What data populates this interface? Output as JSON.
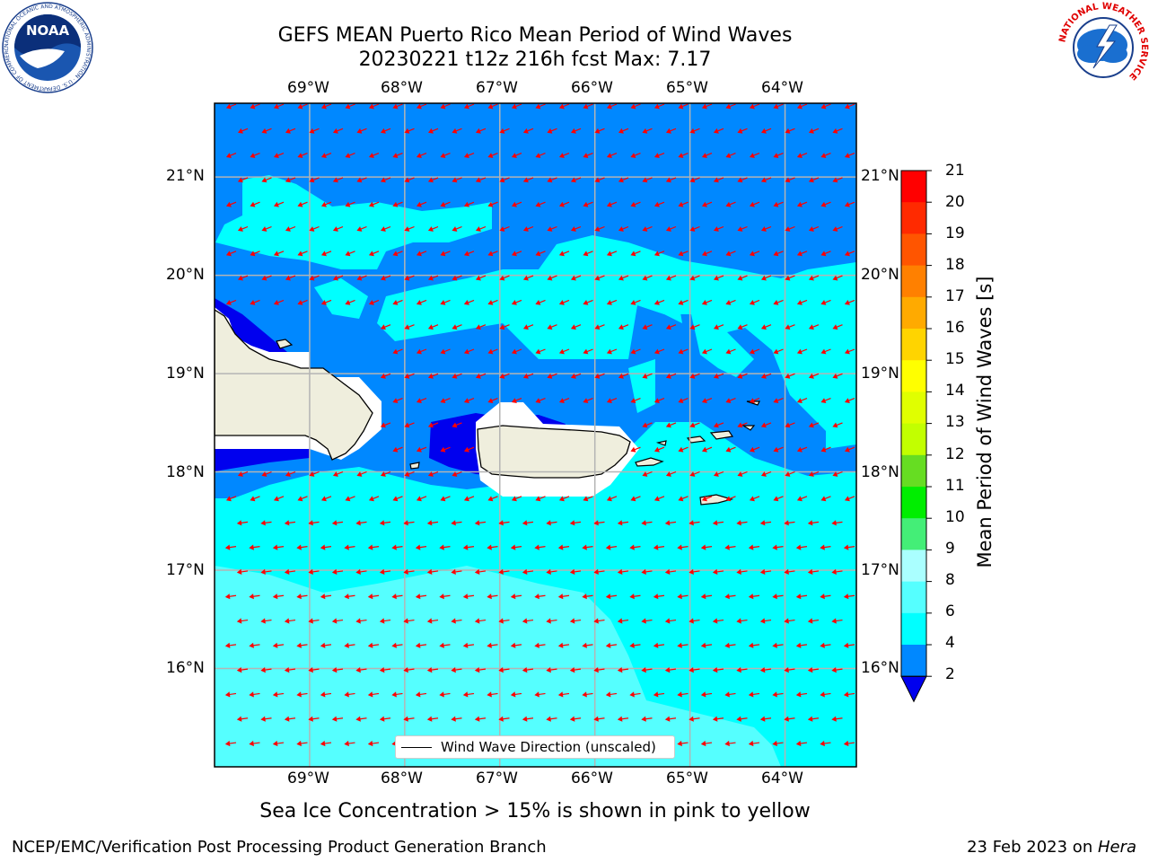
{
  "title": {
    "line1": "GEFS MEAN Puerto Rico Mean Period of Wind Waves",
    "line2": "20230221 t12z 216h fcst   Max: 7.17"
  },
  "logos": {
    "left": {
      "text": "NOAA",
      "ring_text": "NATIONAL OCEANIC AND ATMOSPHERIC ADMINISTRATION · U.S. DEPARTMENT OF COMMERCE"
    },
    "right": {
      "ring_text": "NATIONAL WEATHER SERVICE"
    }
  },
  "map": {
    "lon_labels": [
      "69°W",
      "68°W",
      "67°W",
      "66°W",
      "65°W",
      "64°W"
    ],
    "lat_labels": [
      "21°N",
      "20°N",
      "19°N",
      "18°N",
      "17°N",
      "16°N"
    ],
    "lon_values": [
      -69,
      -68,
      -67,
      -66,
      -65,
      -64
    ],
    "lat_values": [
      21,
      20,
      19,
      18,
      17,
      16
    ],
    "extent": {
      "lon_min": -70,
      "lon_max": -63.25,
      "lat_min": 15,
      "lat_max": 21.75
    },
    "legend_label": "Wind Wave Direction (unscaled)",
    "arrow_color": "#ff0000",
    "land_color": "#efeedd",
    "gridlines": true
  },
  "colorbar": {
    "title": "Mean Period of Wind Waves [s]",
    "labels": [
      "21",
      "20",
      "19",
      "18",
      "17",
      "16",
      "15",
      "14",
      "13",
      "12",
      "11",
      "10",
      "9",
      "8",
      "6",
      "4",
      "2"
    ],
    "colors": [
      "#ff0000",
      "#ff2a00",
      "#ff5500",
      "#ff8000",
      "#ffaa00",
      "#ffd400",
      "#ffff00",
      "#e0ff00",
      "#c2ff00",
      "#66dd22",
      "#00ee00",
      "#44ee77",
      "#aaffff",
      "#55ffff",
      "#00ffff",
      "#0088ff",
      "#0000ee"
    ],
    "extend_color": "#0000ee"
  },
  "subnote": "Sea Ice Concentration > 15% is shown in pink to yellow",
  "footer": {
    "left": "NCEP/EMC/Verification Post Processing Product Generation Branch",
    "right_prefix": "23 Feb 2023 on ",
    "right_host": "Hera"
  }
}
